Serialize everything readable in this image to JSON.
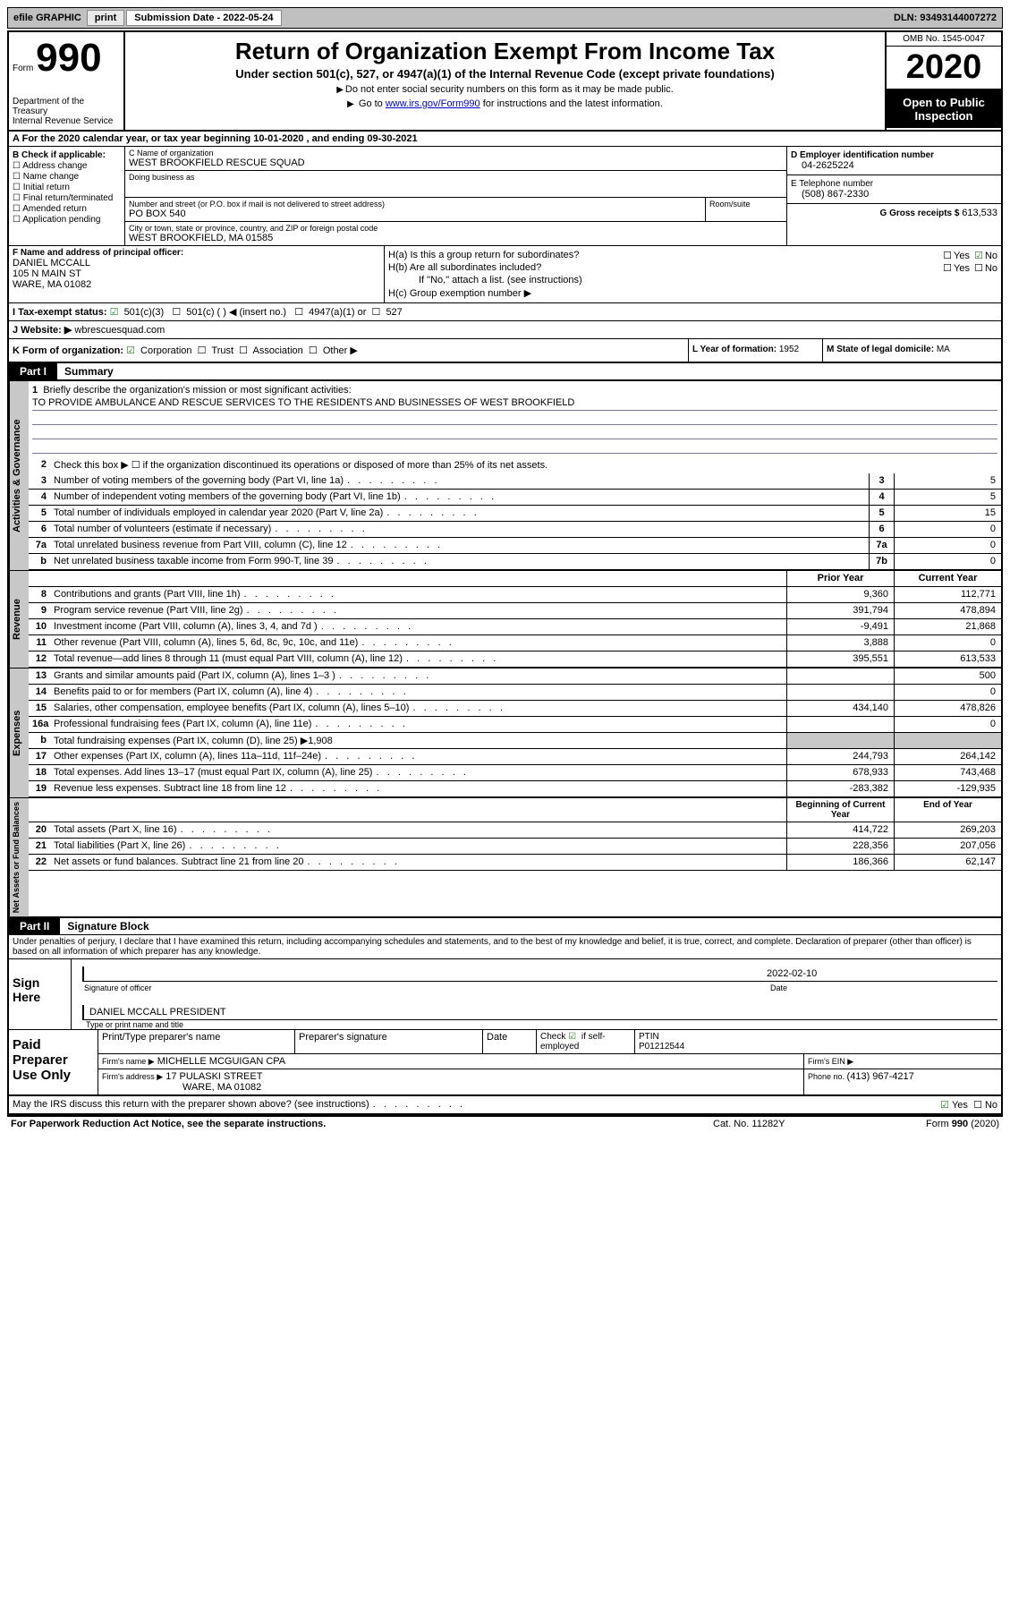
{
  "topbar": {
    "efile_label": "efile GRAPHIC",
    "print_btn": "print",
    "submission_label": "Submission Date ",
    "submission_date": "- 2022-05-24",
    "dln_label": "DLN: ",
    "dln": "93493144007272"
  },
  "header": {
    "form_label": "Form",
    "form_number": "990",
    "dept": "Department of the Treasury\nInternal Revenue Service",
    "title": "Return of Organization Exempt From Income Tax",
    "subtitle": "Under section 501(c), 527, or 4947(a)(1) of the Internal Revenue Code (except private foundations)",
    "note1": "Do not enter social security numbers on this form as it may be made public.",
    "note2_pre": "Go to ",
    "note2_link": "www.irs.gov/Form990",
    "note2_post": " for instructions and the latest information.",
    "omb": "OMB No. 1545-0047",
    "year": "2020",
    "open_public": "Open to Public Inspection"
  },
  "row_a": {
    "text": "For the 2020 calendar year, or tax year beginning 10-01-2020     , and ending 09-30-2021"
  },
  "section_b": {
    "label": "B Check if applicable:",
    "items": [
      "Address change",
      "Name change",
      "Initial return",
      "Final return/terminated",
      "Amended return",
      "Application pending"
    ]
  },
  "section_c": {
    "name_label": "C Name of organization",
    "name": "WEST BROOKFIELD RESCUE SQUAD",
    "dba_label": "Doing business as",
    "dba": "",
    "street_label": "Number and street (or P.O. box if mail is not delivered to street address)",
    "street": "PO BOX 540",
    "room_label": "Room/suite",
    "room": "",
    "city_label": "City or town, state or province, country, and ZIP or foreign postal code",
    "city": "WEST BROOKFIELD, MA  01585"
  },
  "section_d": {
    "ein_label": "D Employer identification number",
    "ein": "04-2625224",
    "phone_label": "E Telephone number",
    "phone": "(508) 867-2330",
    "gross_label": "G Gross receipts $ ",
    "gross": "613,533"
  },
  "section_f": {
    "label": "F Name and address of principal officer:",
    "name": "DANIEL MCCALL",
    "addr1": "105 N MAIN ST",
    "addr2": "WARE, MA  01082"
  },
  "section_h": {
    "a_label": "H(a)  Is this a group return for subordinates?",
    "b_label": "H(b)  Are all subordinates included?",
    "b_note": "If \"No,\" attach a list. (see instructions)",
    "c_label": "H(c)  Group exemption number ▶",
    "yes": "Yes",
    "no": "No"
  },
  "section_i": {
    "label": "I    Tax-exempt status:",
    "opts": [
      "501(c)(3)",
      "501(c) (   ) ◀ (insert no.)",
      "4947(a)(1) or",
      "527"
    ]
  },
  "section_j": {
    "label": "J    Website: ▶ ",
    "value": "wbrescuesquad.com"
  },
  "section_k": {
    "label": "K Form of organization:",
    "opts": [
      "Corporation",
      "Trust",
      "Association",
      "Other ▶"
    ],
    "l_label": "L Year of formation: ",
    "l_val": "1952",
    "m_label": "M State of legal domicile: ",
    "m_val": "MA"
  },
  "part1": {
    "tab": "Part I",
    "title": "Summary"
  },
  "governance": {
    "vtab": "Activities & Governance",
    "line1_label": "Briefly describe the organization's mission or most significant activities:",
    "line1_text": "TO PROVIDE AMBULANCE AND RESCUE SERVICES TO THE RESIDENTS AND BUSINESSES OF WEST BROOKFIELD",
    "line2": "Check this box ▶ ☐ if the organization discontinued its operations or disposed of more than 25% of its net assets.",
    "lines": [
      {
        "n": "3",
        "d": "Number of voting members of the governing body (Part VI, line 1a)",
        "box": "3",
        "v": "5"
      },
      {
        "n": "4",
        "d": "Number of independent voting members of the governing body (Part VI, line 1b)",
        "box": "4",
        "v": "5"
      },
      {
        "n": "5",
        "d": "Total number of individuals employed in calendar year 2020 (Part V, line 2a)",
        "box": "5",
        "v": "15"
      },
      {
        "n": "6",
        "d": "Total number of volunteers (estimate if necessary)",
        "box": "6",
        "v": "0"
      },
      {
        "n": "7a",
        "d": "Total unrelated business revenue from Part VIII, column (C), line 12",
        "box": "7a",
        "v": "0"
      },
      {
        "n": "b",
        "d": "Net unrelated business taxable income from Form 990-T, line 39",
        "box": "7b",
        "v": "0"
      }
    ]
  },
  "revenue": {
    "vtab": "Revenue",
    "col_prior": "Prior Year",
    "col_current": "Current Year",
    "lines": [
      {
        "n": "8",
        "d": "Contributions and grants (Part VIII, line 1h)",
        "p": "9,360",
        "c": "112,771"
      },
      {
        "n": "9",
        "d": "Program service revenue (Part VIII, line 2g)",
        "p": "391,794",
        "c": "478,894"
      },
      {
        "n": "10",
        "d": "Investment income (Part VIII, column (A), lines 3, 4, and 7d )",
        "p": "-9,491",
        "c": "21,868"
      },
      {
        "n": "11",
        "d": "Other revenue (Part VIII, column (A), lines 5, 6d, 8c, 9c, 10c, and 11e)",
        "p": "3,888",
        "c": "0"
      },
      {
        "n": "12",
        "d": "Total revenue—add lines 8 through 11 (must equal Part VIII, column (A), line 12)",
        "p": "395,551",
        "c": "613,533"
      }
    ]
  },
  "expenses": {
    "vtab": "Expenses",
    "lines": [
      {
        "n": "13",
        "d": "Grants and similar amounts paid (Part IX, column (A), lines 1–3 )",
        "p": "",
        "c": "500"
      },
      {
        "n": "14",
        "d": "Benefits paid to or for members (Part IX, column (A), line 4)",
        "p": "",
        "c": "0"
      },
      {
        "n": "15",
        "d": "Salaries, other compensation, employee benefits (Part IX, column (A), lines 5–10)",
        "p": "434,140",
        "c": "478,826"
      },
      {
        "n": "16a",
        "d": "Professional fundraising fees (Part IX, column (A), line 11e)",
        "p": "",
        "c": "0"
      },
      {
        "n": "b",
        "d": "Total fundraising expenses (Part IX, column (D), line 25) ▶1,908",
        "p": "shaded",
        "c": "shaded"
      },
      {
        "n": "17",
        "d": "Other expenses (Part IX, column (A), lines 11a–11d, 11f–24e)",
        "p": "244,793",
        "c": "264,142"
      },
      {
        "n": "18",
        "d": "Total expenses. Add lines 13–17 (must equal Part IX, column (A), line 25)",
        "p": "678,933",
        "c": "743,468"
      },
      {
        "n": "19",
        "d": "Revenue less expenses. Subtract line 18 from line 12",
        "p": "-283,382",
        "c": "-129,935"
      }
    ]
  },
  "netassets": {
    "vtab": "Net Assets or Fund Balances",
    "col_begin": "Beginning of Current Year",
    "col_end": "End of Year",
    "lines": [
      {
        "n": "20",
        "d": "Total assets (Part X, line 16)",
        "p": "414,722",
        "c": "269,203"
      },
      {
        "n": "21",
        "d": "Total liabilities (Part X, line 26)",
        "p": "228,356",
        "c": "207,056"
      },
      {
        "n": "22",
        "d": "Net assets or fund balances. Subtract line 21 from line 20",
        "p": "186,366",
        "c": "62,147"
      }
    ]
  },
  "part2": {
    "tab": "Part II",
    "title": "Signature Block",
    "penalty": "Under penalties of perjury, I declare that I have examined this return, including accompanying schedules and statements, and to the best of my knowledge and belief, it is true, correct, and complete. Declaration of preparer (other than officer) is based on all information of which preparer has any knowledge."
  },
  "sign": {
    "label": "Sign Here",
    "sig_officer_label": "Signature of officer",
    "date_label": "Date",
    "date_val": "2022-02-10",
    "name": "DANIEL MCCALL  PRESIDENT",
    "name_label": "Type or print name and title"
  },
  "preparer": {
    "label": "Paid Preparer Use Only",
    "h1": "Print/name preparer's name",
    "h1b": "Print/Type preparer's name",
    "h2": "Preparer's signature",
    "h3": "Date",
    "h4_pre": "Check",
    "h4_post": "if self-employed",
    "h5": "PTIN",
    "ptin": "P01212544",
    "firm_name_label": "Firm's name     ▶",
    "firm_name": "MICHELLE MCGUIGAN CPA",
    "firm_ein_label": "Firm's EIN ▶",
    "firm_addr_label": "Firm's address ▶",
    "firm_addr1": "17 PULASKI STREET",
    "firm_addr2": "WARE, MA  01082",
    "phone_label": "Phone no. ",
    "phone": "(413) 967-4217"
  },
  "discuss": {
    "text": "May the IRS discuss this return with the preparer shown above? (see instructions)",
    "yes": "Yes",
    "no": "No"
  },
  "footer": {
    "left": "For Paperwork Reduction Act Notice, see the separate instructions.",
    "mid": "Cat. No. 11282Y",
    "right_pre": "Form ",
    "right_form": "990",
    "right_post": " (2020)"
  }
}
